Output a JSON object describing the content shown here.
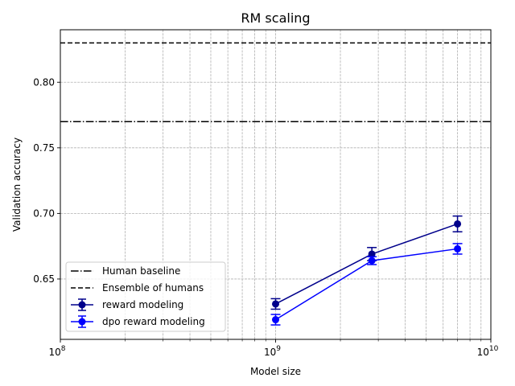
{
  "chart_data": {
    "type": "line",
    "title": "RM scaling",
    "xlabel": "Model size",
    "ylabel": "Validation accuracy",
    "xscale": "log",
    "xlim": [
      100000000,
      10000000000
    ],
    "ylim": [
      0.604,
      0.84
    ],
    "grid": true,
    "legend_placement": "lower-left",
    "x_ticks": [
      {
        "value": 100000000,
        "base": "10",
        "exp": "8"
      },
      {
        "value": 1000000000,
        "base": "10",
        "exp": "9"
      },
      {
        "value": 10000000000,
        "base": "10",
        "exp": "10"
      }
    ],
    "y_ticks": [
      {
        "value": 0.65,
        "label": "0.65"
      },
      {
        "value": 0.7,
        "label": "0.70"
      },
      {
        "value": 0.75,
        "label": "0.75"
      },
      {
        "value": 0.8,
        "label": "0.80"
      }
    ],
    "reference_lines": [
      {
        "name": "Human baseline",
        "y": 0.77,
        "style": "dashdot",
        "color": "#000000"
      },
      {
        "name": "Ensemble of humans",
        "y": 0.83,
        "style": "dashed",
        "color": "#000000"
      }
    ],
    "series": [
      {
        "name": "reward modeling",
        "color": "#00008b",
        "x": [
          1000000000,
          2800000000,
          7000000000
        ],
        "y": [
          0.631,
          0.669,
          0.692
        ],
        "err": [
          0.004,
          0.005,
          0.006
        ]
      },
      {
        "name": "dpo reward modeling",
        "color": "#0000ff",
        "x": [
          1000000000,
          2800000000,
          7000000000
        ],
        "y": [
          0.619,
          0.664,
          0.673
        ],
        "err": [
          0.004,
          0.003,
          0.004
        ]
      }
    ]
  }
}
